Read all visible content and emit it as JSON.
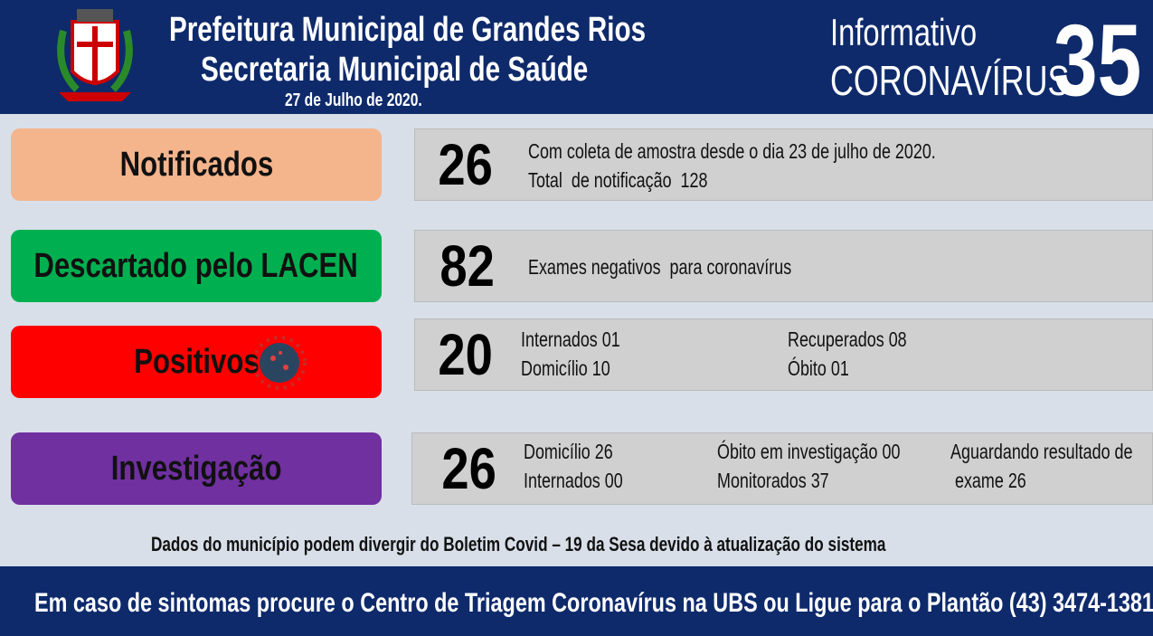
{
  "header": {
    "title_line1": "Prefeitura Municipal de Grandes Rios",
    "title_line2": "Secretaria Municipal de Saúde",
    "date": "27 de Julho de 2020.",
    "informativo": "Informativo",
    "topic": "CORONAVÍRUS",
    "edition": "35"
  },
  "rows": [
    {
      "label": "Notificados",
      "number": "26",
      "columns": [
        [
          "Com coleta de amostra desde o dia 23 de julho de 2020.",
          "Total  de notificação  128"
        ]
      ]
    },
    {
      "label": "Descartado pelo LACEN",
      "number": "82",
      "columns": [
        [
          "Exames negativos  para coronavírus"
        ]
      ]
    },
    {
      "label": "Positivos",
      "number": "20",
      "columns": [
        [
          "Internados 01",
          "Domicílio 10"
        ],
        [
          "Recuperados 08",
          "Óbito 01"
        ]
      ]
    },
    {
      "label": "Investigação",
      "number": "26",
      "columns": [
        [
          "Domicílio 26",
          "Internados 00"
        ],
        [
          "Óbito em investigação 00",
          "Monitorados 37"
        ],
        [
          "Aguardando resultado de",
          " exame 26"
        ]
      ]
    }
  ],
  "note": "Dados do município podem divergir do Boletim Covid – 19 da Sesa devido à atualização do sistema",
  "footer": "Em caso de sintomas procure o Centro de Triagem Coronavírus na UBS ou Ligue para o Plantão (43) 3474-1381"
}
